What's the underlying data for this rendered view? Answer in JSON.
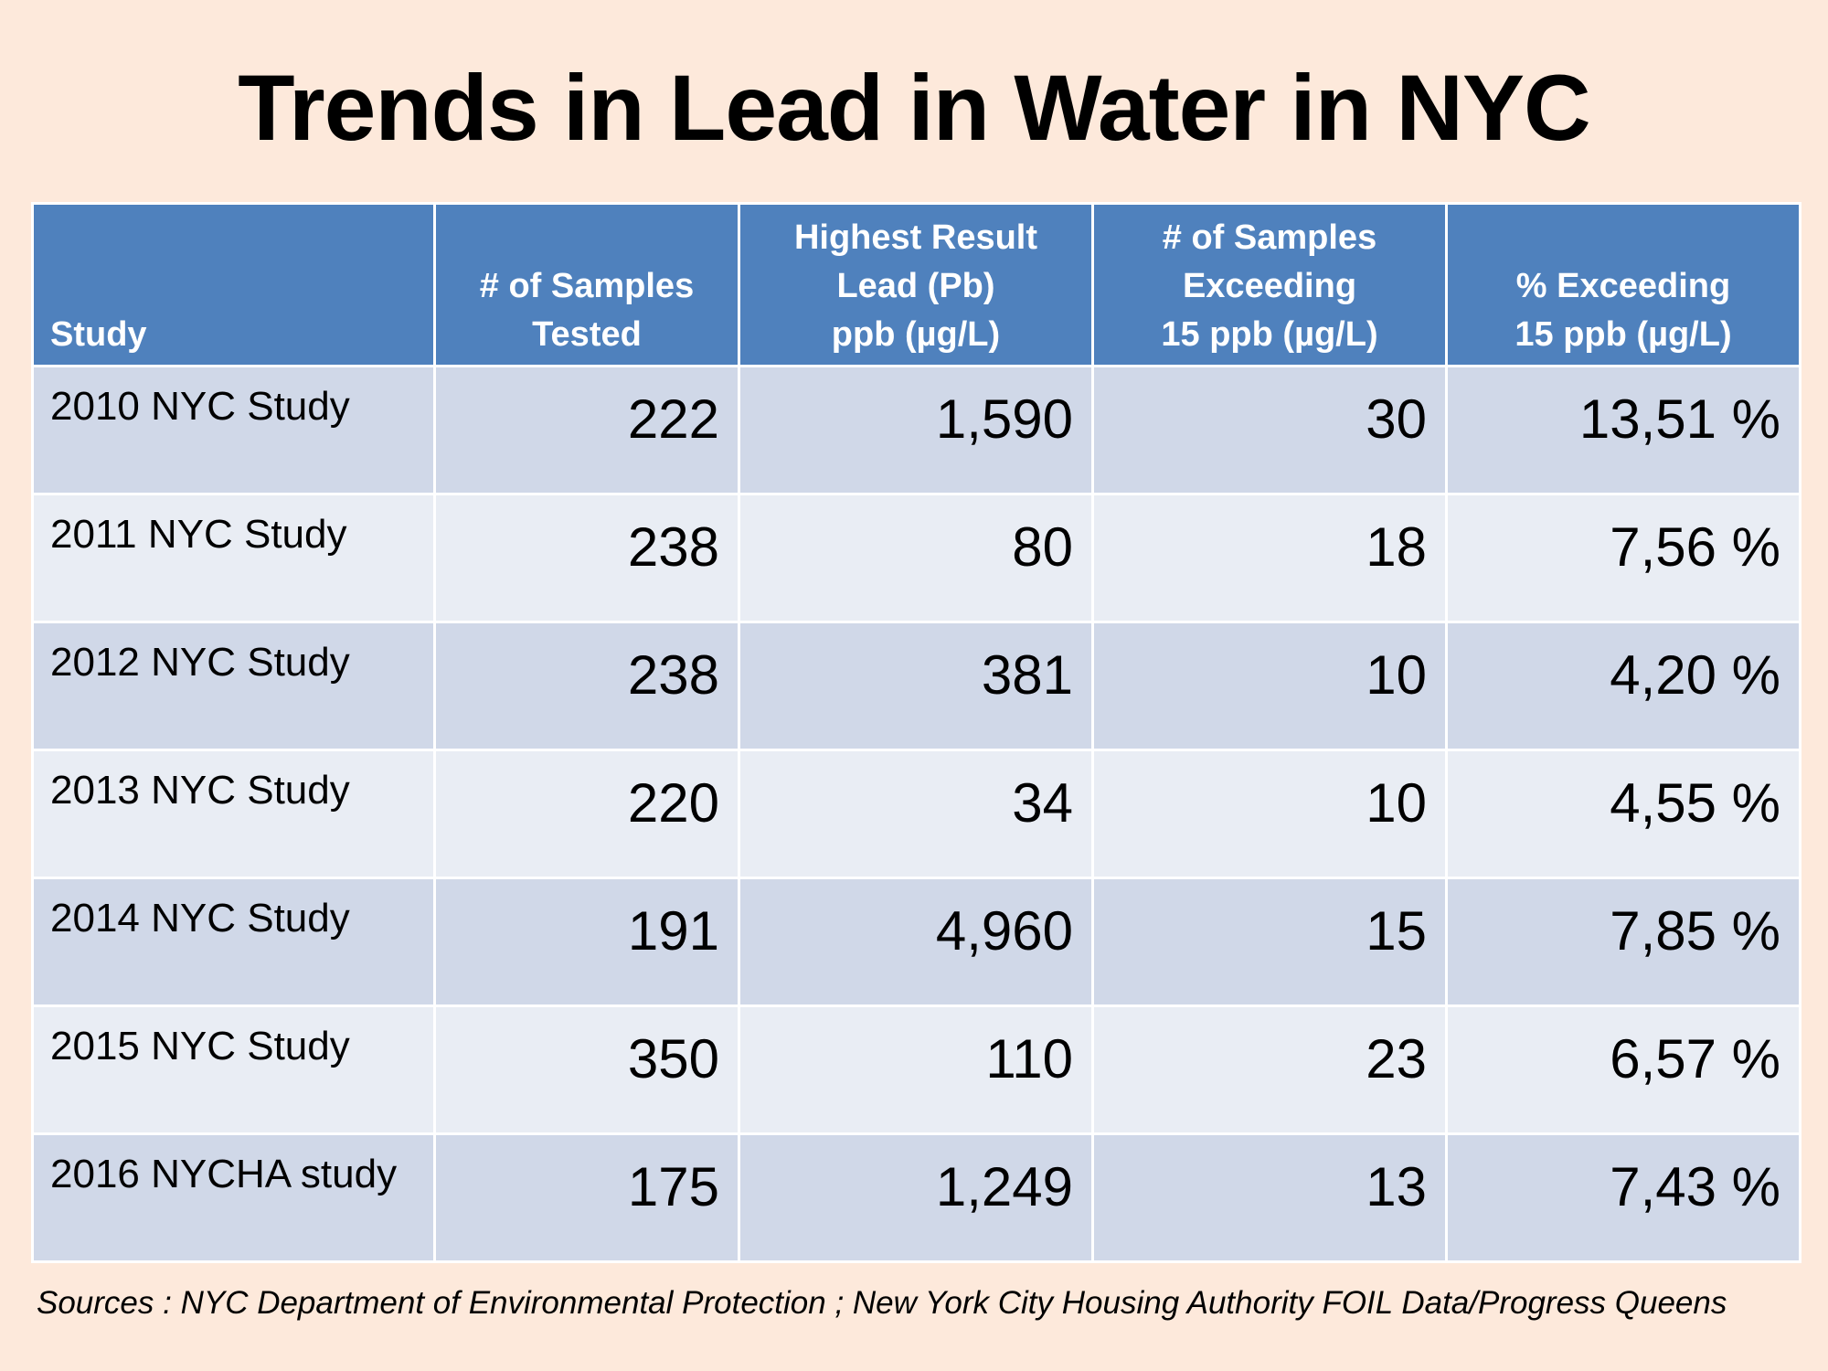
{
  "title": "Trends in Lead in Water in NYC",
  "table": {
    "headers": [
      {
        "lines": [
          "Study"
        ]
      },
      {
        "lines": [
          "# of Samples",
          "Tested"
        ]
      },
      {
        "lines": [
          "Highest Result",
          "Lead (Pb)",
          "ppb (µg/L)"
        ]
      },
      {
        "lines": [
          "# of Samples",
          "Exceeding",
          "15 ppb (µg/L)"
        ]
      },
      {
        "lines": [
          "% Exceeding",
          "15 ppb (µg/L)"
        ]
      }
    ],
    "rows": [
      {
        "study": "2010 NYC Study",
        "tested": "222",
        "highest": "1,590",
        "exceeding": "30",
        "percent": "13,51 %"
      },
      {
        "study": "2011 NYC Study",
        "tested": "238",
        "highest": "80",
        "exceeding": "18",
        "percent": "7,56 %"
      },
      {
        "study": "2012 NYC Study",
        "tested": "238",
        "highest": "381",
        "exceeding": "10",
        "percent": "4,20 %"
      },
      {
        "study": "2013 NYC Study",
        "tested": "220",
        "highest": "34",
        "exceeding": "10",
        "percent": "4,55 %"
      },
      {
        "study": "2014 NYC Study",
        "tested": "191",
        "highest": "4,960",
        "exceeding": "15",
        "percent": "7,85 %"
      },
      {
        "study": "2015 NYC Study",
        "tested": "350",
        "highest": "110",
        "exceeding": "23",
        "percent": "6,57 %"
      },
      {
        "study": "2016 NYCHA study",
        "tested": "175",
        "highest": "1,249",
        "exceeding": "13",
        "percent": "7,43 %"
      }
    ]
  },
  "sources": "Sources :  NYC Department of Environmental Protection ; New York City Housing Authority FOIL Data/Progress Queens",
  "colors": {
    "background": "#fde9db",
    "header": "#4f81bd",
    "row_dark": "#d0d8e8",
    "row_light": "#e9edf4"
  }
}
